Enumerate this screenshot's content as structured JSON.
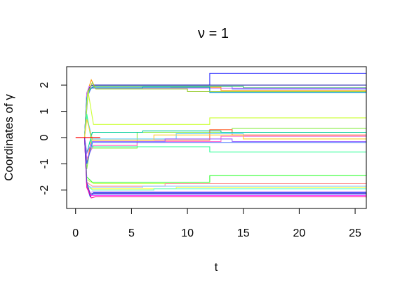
{
  "chart_data": {
    "type": "line",
    "title": "ν = 1",
    "xlabel": "t",
    "ylabel": "Coordinates of γ",
    "xlim": [
      -0.8,
      26
    ],
    "ylim": [
      -2.7,
      2.7
    ],
    "x_ticks": [
      0,
      5,
      10,
      15,
      20,
      25
    ],
    "y_ticks": [
      -2,
      -1,
      0,
      1,
      2
    ],
    "grid": false,
    "legend": "none",
    "reference_line": {
      "y": 0,
      "x_range": [
        0,
        2.2
      ],
      "color": "#ff0000"
    },
    "series": [
      {
        "color": "#3a3aff",
        "x": [
          0.8,
          1.0,
          1.2,
          1.5,
          5,
          12,
          26
        ],
        "y": [
          0,
          1.6,
          1.9,
          2.0,
          2.0,
          2.45,
          2.45
        ]
      },
      {
        "color": "#2a2aaa",
        "x": [
          0.8,
          1.0,
          1.3,
          1.6,
          8,
          26
        ],
        "y": [
          0,
          1.7,
          1.95,
          2.0,
          2.0,
          2.0
        ]
      },
      {
        "color": "#5e7cff",
        "x": [
          0.8,
          1.1,
          1.4,
          1.7,
          6,
          14,
          26
        ],
        "y": [
          0,
          1.6,
          1.9,
          1.95,
          1.95,
          1.85,
          1.85
        ]
      },
      {
        "color": "#ff9900",
        "x": [
          0.8,
          1.1,
          1.4,
          1.7,
          8.5,
          13,
          26
        ],
        "y": [
          0,
          1.8,
          2.2,
          1.95,
          1.92,
          1.8,
          1.8
        ]
      },
      {
        "color": "#33cc66",
        "x": [
          0.8,
          1.0,
          1.3,
          1.6,
          9,
          15,
          26
        ],
        "y": [
          0,
          1.6,
          1.85,
          1.95,
          1.95,
          1.9,
          1.9
        ]
      },
      {
        "color": "#cc66ff",
        "x": [
          0.8,
          1.0,
          1.2,
          1.5,
          7,
          26
        ],
        "y": [
          0,
          1.7,
          1.95,
          1.88,
          1.88,
          1.78
        ]
      },
      {
        "color": "#0099cc",
        "x": [
          0.8,
          1.0,
          1.2,
          1.5,
          6,
          12,
          26
        ],
        "y": [
          0,
          1.5,
          1.8,
          1.9,
          1.92,
          1.72,
          1.72
        ]
      },
      {
        "color": "#99cc33",
        "x": [
          0.8,
          1.1,
          1.5,
          1.8,
          10,
          26
        ],
        "y": [
          0,
          1.7,
          2.1,
          1.85,
          1.75,
          1.75
        ]
      },
      {
        "color": "#ccff33",
        "x": [
          0.8,
          1.1,
          1.6,
          2.0,
          12,
          26
        ],
        "y": [
          0,
          1.8,
          0.5,
          0.5,
          0.75,
          0.75
        ]
      },
      {
        "color": "#88ee44",
        "x": [
          0.8,
          1.0,
          1.3,
          5.5,
          14,
          26
        ],
        "y": [
          0,
          -1.2,
          -0.4,
          0.2,
          0.35,
          0.35
        ]
      },
      {
        "color": "#ff6633",
        "x": [
          0.8,
          1.0,
          1.4,
          12,
          14,
          26
        ],
        "y": [
          0,
          -1.0,
          -0.1,
          0.3,
          0.1,
          0.1
        ]
      },
      {
        "color": "#66ccff",
        "x": [
          0.8,
          1.0,
          1.5,
          9,
          15,
          26
        ],
        "y": [
          0,
          0.8,
          -0.05,
          0.15,
          0.05,
          0.05
        ]
      },
      {
        "color": "#00cc99",
        "x": [
          0.8,
          1.0,
          1.5,
          6,
          13,
          26
        ],
        "y": [
          0,
          -0.6,
          0.2,
          0.25,
          0.2,
          0.2
        ]
      },
      {
        "color": "#ff66cc",
        "x": [
          0.8,
          1.0,
          1.6,
          5.5,
          13,
          26
        ],
        "y": [
          0,
          -0.8,
          -0.3,
          -0.15,
          0.05,
          0.05
        ]
      },
      {
        "color": "#9966ff",
        "x": [
          0.8,
          1.0,
          1.5,
          8,
          14,
          26
        ],
        "y": [
          0,
          -0.6,
          -0.15,
          -0.05,
          -0.15,
          -0.15
        ]
      },
      {
        "color": "#33ff99",
        "x": [
          0.8,
          1.0,
          1.5,
          12,
          26
        ],
        "y": [
          0,
          0.9,
          -0.35,
          -0.55,
          -0.55
        ]
      },
      {
        "color": "#3366ff",
        "x": [
          0.8,
          1.0,
          1.5,
          5.5,
          12,
          26
        ],
        "y": [
          0,
          -1.0,
          -0.2,
          -0.2,
          -0.2,
          -0.2
        ]
      },
      {
        "color": "#ffcc33",
        "x": [
          0.8,
          1.0,
          1.5,
          7,
          15,
          26
        ],
        "y": [
          0,
          0.7,
          -0.1,
          0.1,
          -0.05,
          -0.05
        ]
      },
      {
        "color": "#33ff33",
        "x": [
          0.8,
          1.0,
          1.5,
          12,
          26
        ],
        "y": [
          0,
          -1.5,
          -1.7,
          -1.45,
          -1.3
        ]
      },
      {
        "color": "#ccff66",
        "x": [
          0.8,
          1.0,
          1.6,
          5,
          26
        ],
        "y": [
          0,
          -1.6,
          -1.75,
          -1.75,
          -1.6
        ]
      },
      {
        "color": "#ff9999",
        "x": [
          0.8,
          1.0,
          1.5,
          8,
          26
        ],
        "y": [
          0,
          -1.7,
          -1.85,
          -1.75,
          -1.7
        ]
      },
      {
        "color": "#99ccff",
        "x": [
          0.8,
          1.0,
          1.4,
          6,
          26
        ],
        "y": [
          0,
          -1.8,
          -1.9,
          -1.85,
          -1.78
        ]
      },
      {
        "color": "#ffff33",
        "x": [
          0.8,
          1.0,
          1.5,
          9,
          26
        ],
        "y": [
          0,
          -1.9,
          -1.95,
          -1.9,
          -1.9
        ]
      },
      {
        "color": "#66ffcc",
        "x": [
          0.8,
          1.0,
          1.5,
          7,
          26
        ],
        "y": [
          0,
          -1.75,
          -2.0,
          -1.95,
          -1.95
        ]
      },
      {
        "color": "#cc99ff",
        "x": [
          0.8,
          1.0,
          1.3,
          1.6,
          26
        ],
        "y": [
          0,
          -1.8,
          -2.1,
          -2.05,
          -2.05
        ]
      },
      {
        "color": "#0033ff",
        "x": [
          0.8,
          1.0,
          1.3,
          1.6,
          26
        ],
        "y": [
          0,
          -1.85,
          -2.25,
          -2.1,
          -2.1
        ]
      },
      {
        "color": "#3399ff",
        "x": [
          0.8,
          1.0,
          1.3,
          1.7,
          26
        ],
        "y": [
          0,
          -1.8,
          -2.2,
          -2.15,
          -2.15
        ]
      },
      {
        "color": "#ff33ff",
        "x": [
          0.8,
          1.0,
          1.4,
          1.8,
          26
        ],
        "y": [
          0,
          -1.9,
          -2.2,
          -2.2,
          -2.25
        ]
      },
      {
        "color": "#ff0099",
        "x": [
          0.8,
          1.0,
          1.4,
          1.8,
          26
        ],
        "y": [
          0,
          -1.9,
          -2.3,
          -2.25,
          -2.3
        ]
      },
      {
        "color": "#6633cc",
        "x": [
          0.8,
          1.0,
          1.3,
          1.6,
          26
        ],
        "y": [
          0,
          -1.7,
          -2.15,
          -2.12,
          -2.18
        ]
      }
    ]
  }
}
